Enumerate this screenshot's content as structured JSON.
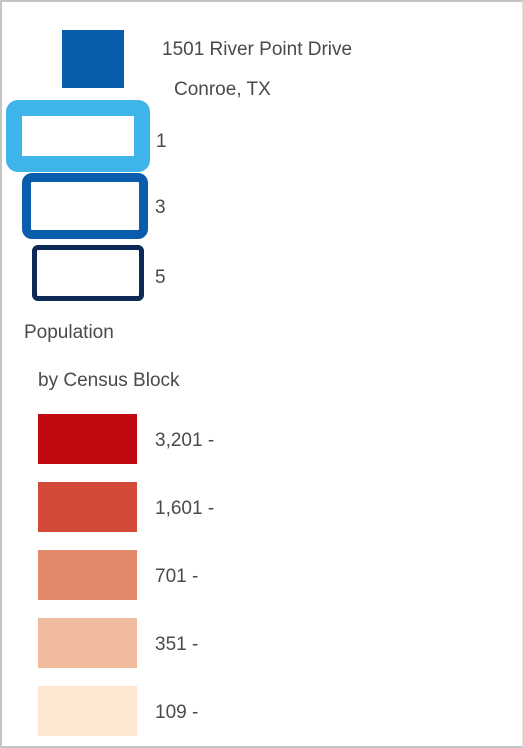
{
  "location": {
    "line1": "1501 River Point Drive",
    "line2": "Conroe, TX",
    "color": "#0a5cad"
  },
  "rings": [
    {
      "label": "1",
      "color": "#3fb4e8"
    },
    {
      "label": "3",
      "color": "#0a5cad"
    },
    {
      "label": "5",
      "color": "#0c2a55"
    }
  ],
  "population": {
    "title_line1": "Population",
    "title_line2": "by Census Block",
    "classes": [
      {
        "label": "3,201 -",
        "color": "#c00a10"
      },
      {
        "label": "1,601 -",
        "color": "#d44a38"
      },
      {
        "label": "701 -",
        "color": "#e2886a"
      },
      {
        "label": "351 -",
        "color": "#efbb9c"
      },
      {
        "label": "109 -",
        "color": "#fde7d3"
      }
    ]
  }
}
